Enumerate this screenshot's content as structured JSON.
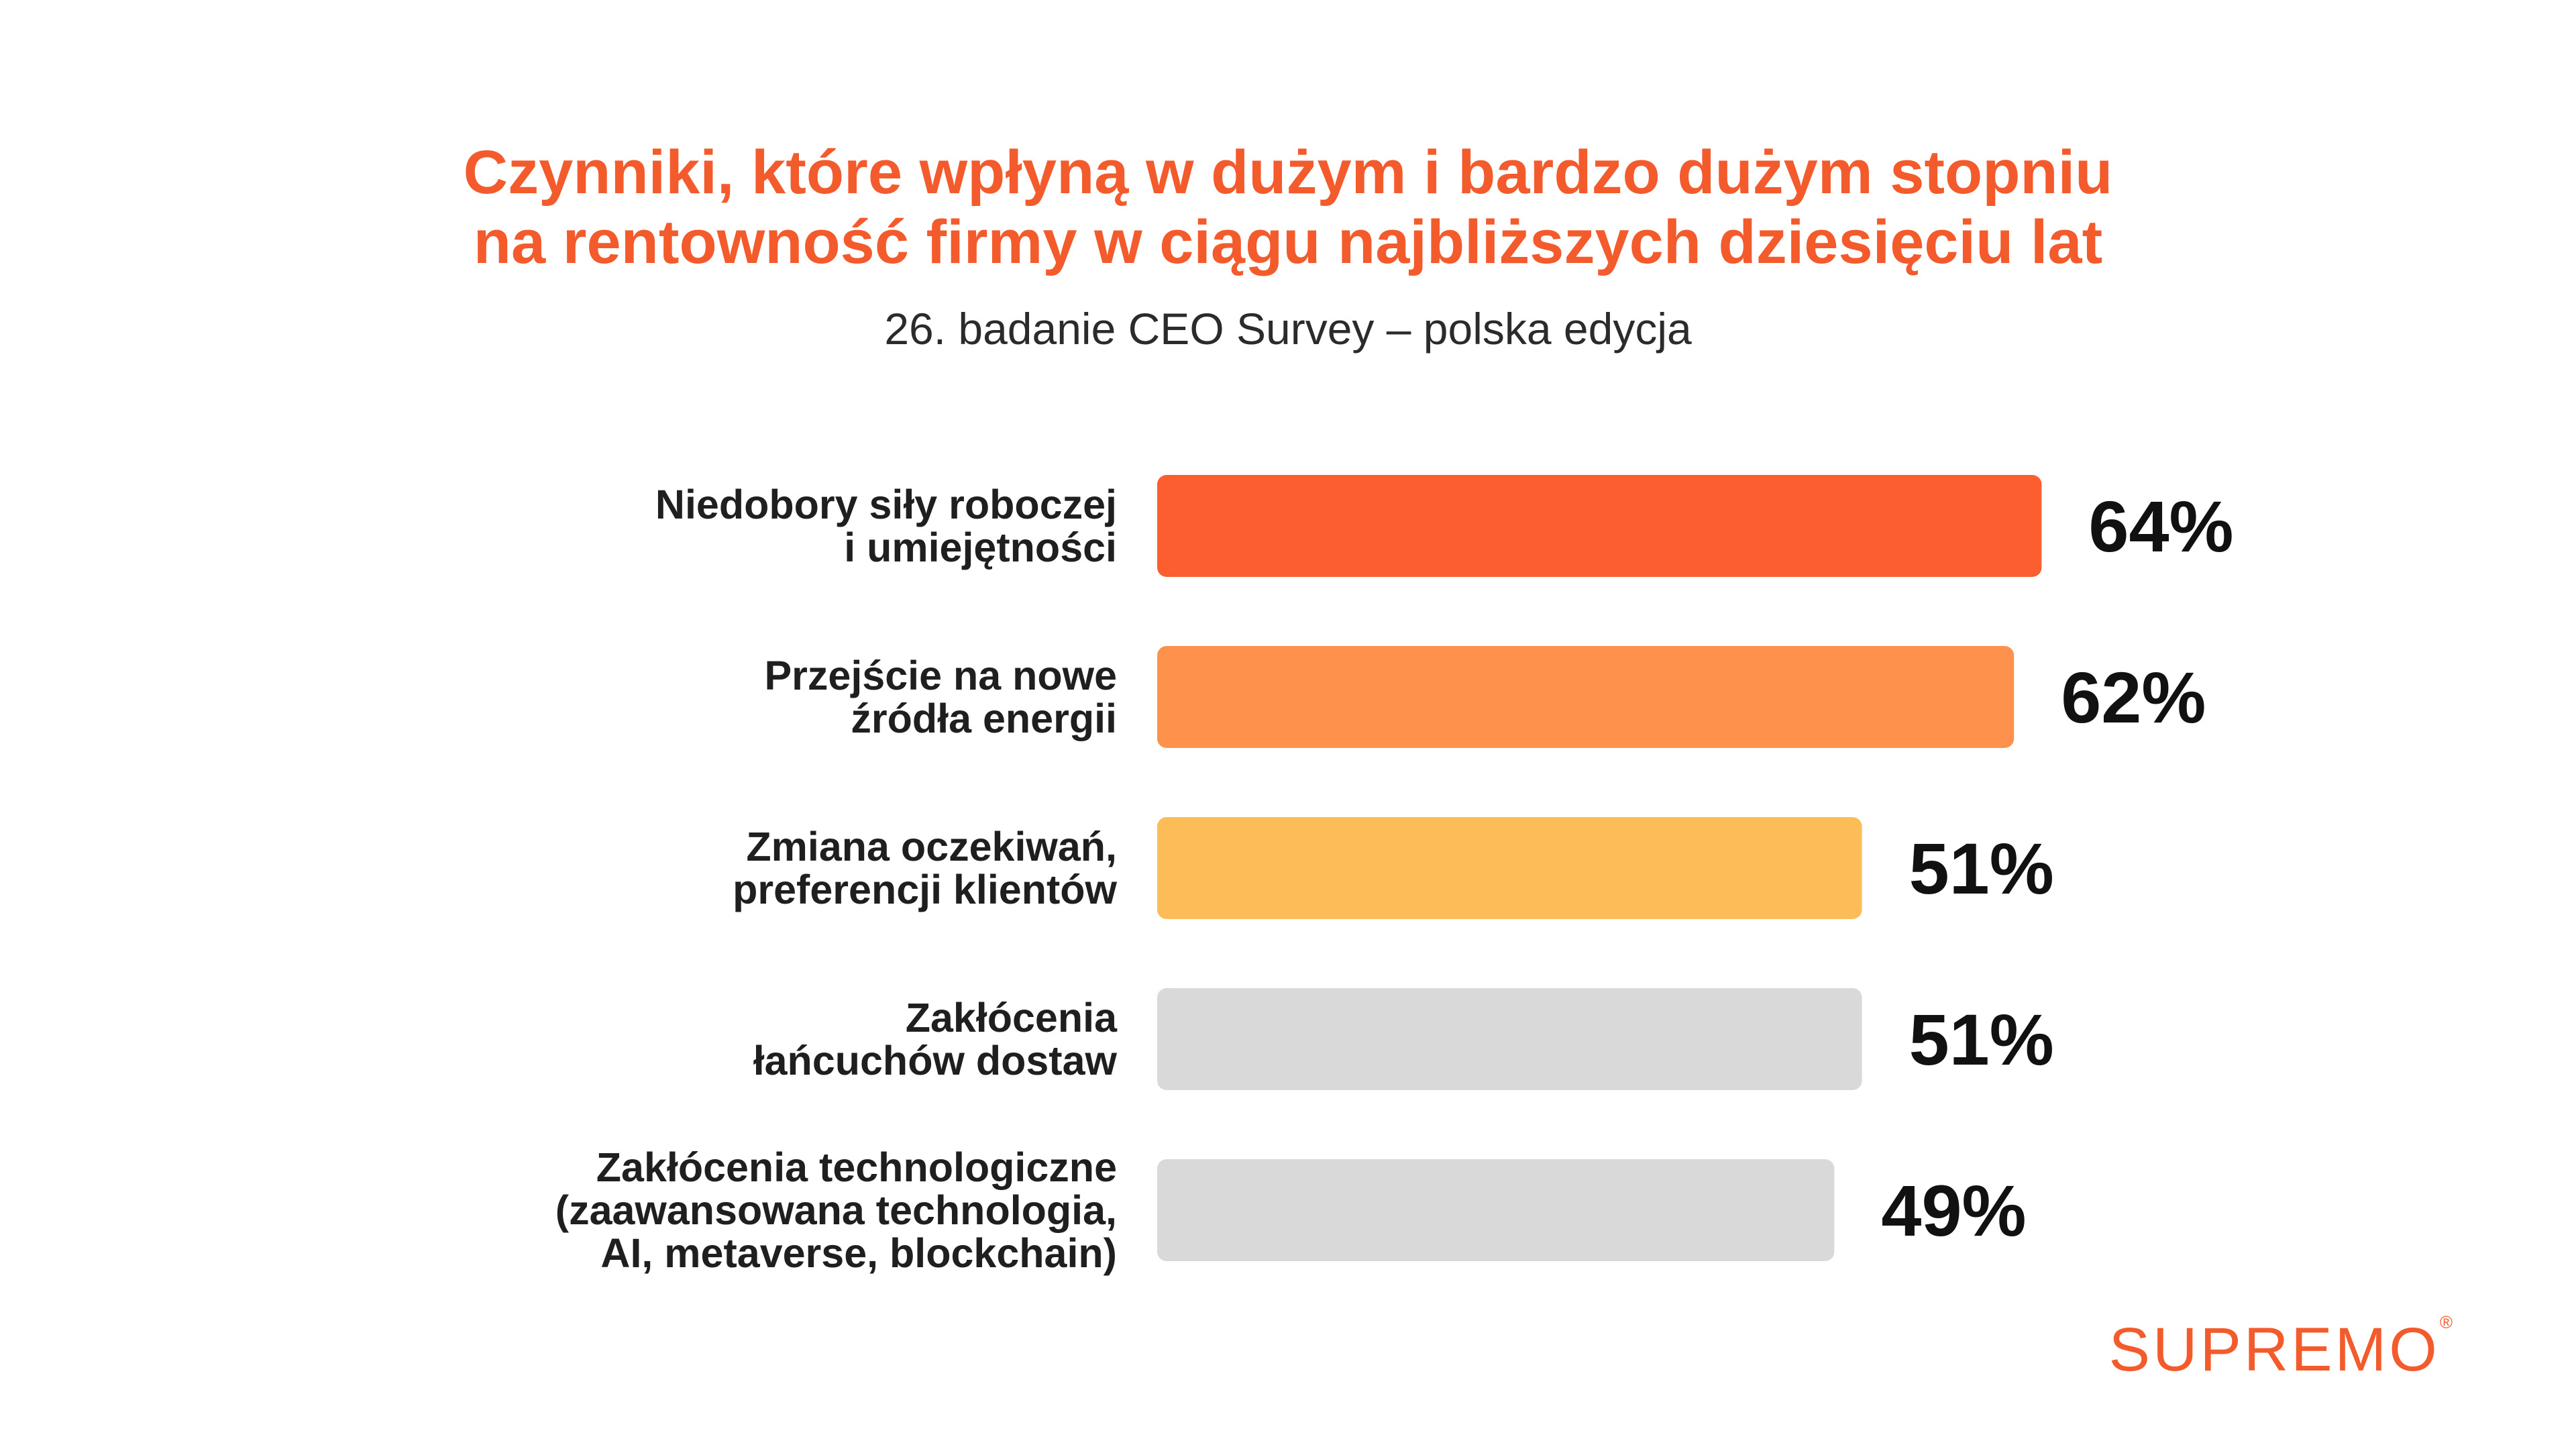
{
  "header": {
    "title_line1": "Czynniki, które wpłyną w dużym i bardzo dużym stopniu",
    "title_line2": "na rentowność firmy w ciągu najbliższych dziesięciu lat",
    "subtitle": "26. badanie CEO Survey – polska edycja"
  },
  "brand": {
    "logo_text": "SUPREMO",
    "logo_mark": "®",
    "color": "#f45b2c"
  },
  "chart_data": {
    "type": "bar",
    "orientation": "horizontal",
    "title": "Czynniki, które wpłyną w dużym i bardzo dużym stopniu na rentowność firmy w ciągu najbliższych dziesięciu lat",
    "subtitle": "26. badanie CEO Survey – polska edycja",
    "categories": [
      [
        "Niedobory siły roboczej",
        "i umiejętności"
      ],
      [
        "Przejście na nowe",
        "źródła energii"
      ],
      [
        "Zmiana oczekiwań,",
        "preferencji klientów"
      ],
      [
        "Zakłócenia",
        "łańcuchów dostaw"
      ],
      [
        "Zakłócenia technologiczne",
        "(zaawansowana technologia,",
        "AI, metaverse, blockchain)"
      ]
    ],
    "values": [
      64,
      62,
      51,
      51,
      49
    ],
    "value_labels": [
      "64%",
      "62%",
      "51%",
      "51%",
      "49%"
    ],
    "unit": "%",
    "colors": [
      "#fd5e2f",
      "#fe914c",
      "#fcbc58",
      "#d9d9d9",
      "#d9d9d9"
    ],
    "xlim": [
      0,
      100
    ],
    "grid": false,
    "legend": "none"
  }
}
